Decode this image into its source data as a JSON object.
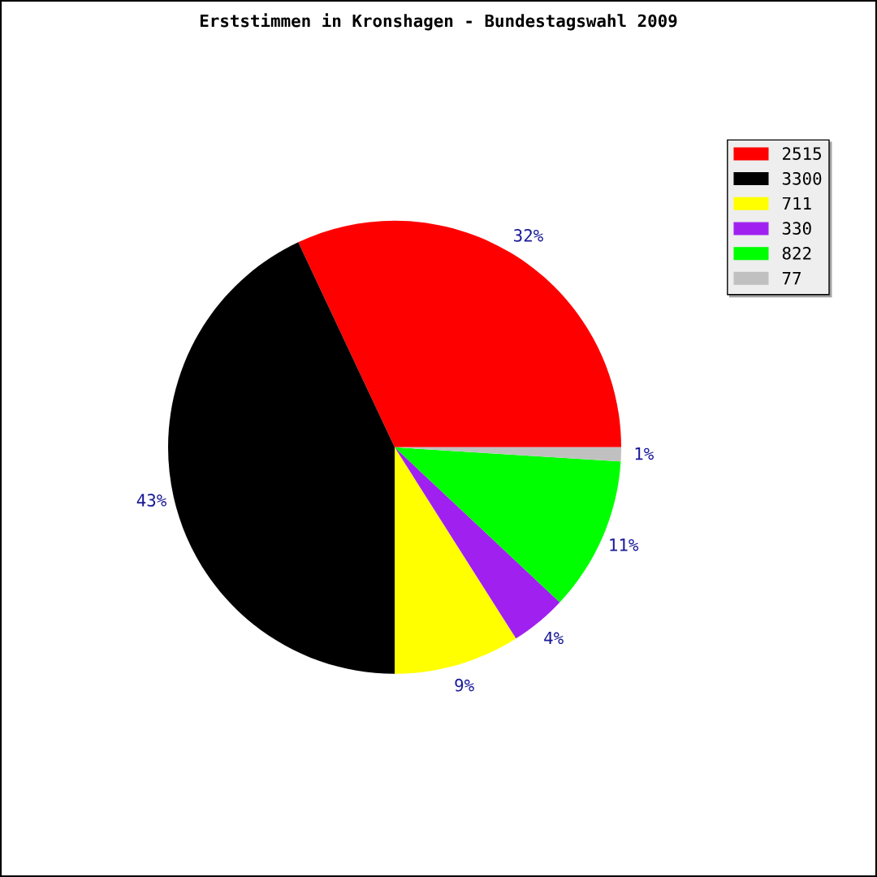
{
  "chart_data": {
    "type": "pie",
    "title": "Erststimmen in Kronshagen - Bundestagswahl 2009",
    "categories": [
      "2515",
      "3300",
      "711",
      "330",
      "822",
      "77"
    ],
    "values": [
      32,
      43,
      9,
      4,
      11,
      1
    ],
    "colors": [
      "#ff0000",
      "#000000",
      "#ffff00",
      "#a020f0",
      "#00ff00",
      "#c0c0c0"
    ],
    "value_labels": [
      "32%",
      "43%",
      "9%",
      "4%",
      "11%",
      "1%"
    ],
    "legend": "top right"
  }
}
